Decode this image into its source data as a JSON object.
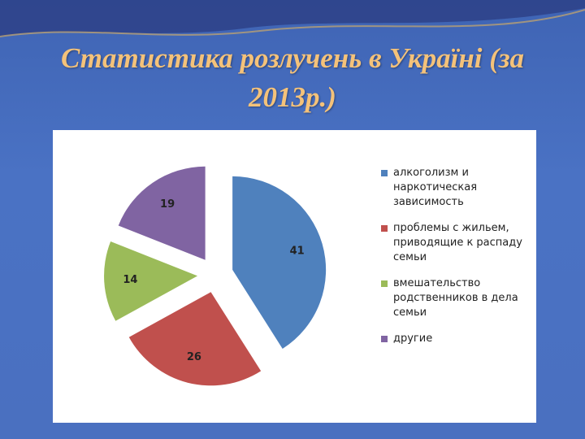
{
  "chart_data": {
    "type": "pie",
    "title": "Статистика розлучень в Україні (за 2013р.)",
    "categories": [
      "алкоголизм и наркотическая зависимость",
      "проблемы с жильем, приводящие к распаду семьи",
      "вмешательство родственников в дела семьи",
      "другие"
    ],
    "values": [
      41,
      26,
      14,
      19
    ],
    "colors": [
      "#4f81bd",
      "#c0504d",
      "#9bbb59",
      "#8064a2"
    ],
    "exploded": true,
    "legend": "right"
  }
}
